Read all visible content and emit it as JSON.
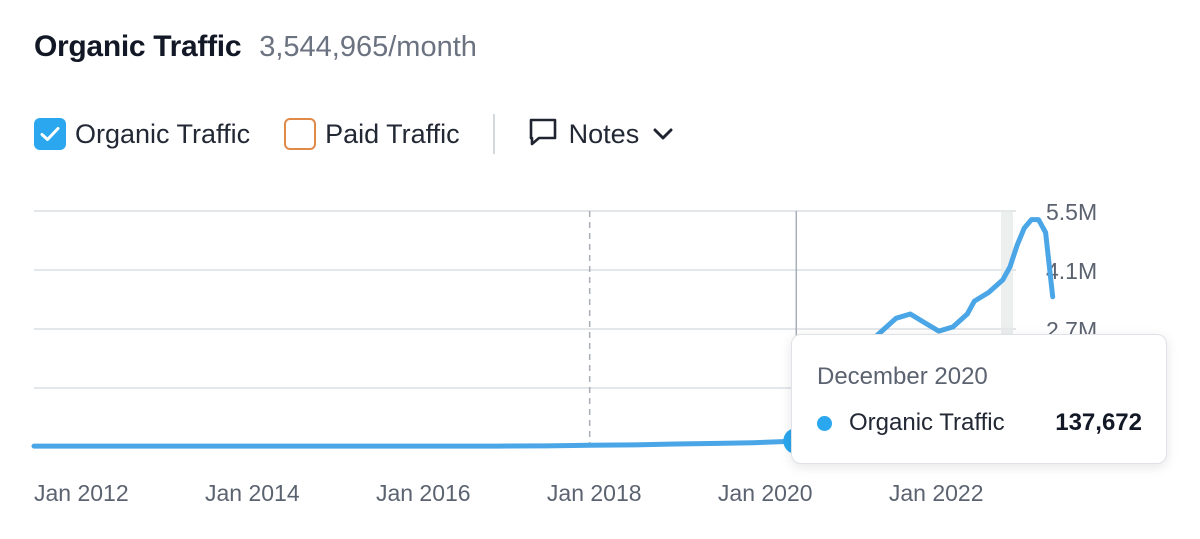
{
  "header": {
    "title": "Organic Traffic",
    "value": "3,544,965/month"
  },
  "legend": {
    "organic": {
      "label": "Organic Traffic",
      "checked": true,
      "color": "#2aa7ee"
    },
    "paid": {
      "label": "Paid Traffic",
      "checked": false,
      "color": "#e08a4a"
    },
    "notes": {
      "label": "Notes",
      "icon": "comment-icon",
      "dropdown_icon": "chevron-down-icon"
    }
  },
  "tooltip": {
    "date": "December 2020",
    "series_name": "Organic Traffic",
    "value": "137,672"
  },
  "chart_data": {
    "type": "line",
    "x_tick_labels": [
      "Jan 2012",
      "Jan 2014",
      "Jan 2016",
      "Jan 2018",
      "Jan 2020",
      "Jan 2022"
    ],
    "y_tick_labels": [
      "5.5M",
      "4.1M",
      "2.7M"
    ],
    "ylim": [
      0,
      5500000
    ],
    "xlim": [
      "2012-01",
      "2023-06"
    ],
    "grid": true,
    "highlight": {
      "date": "2020-12",
      "value": 137672
    },
    "series": [
      {
        "color": "#4aa6e6",
        "points": [
          [
            "2012-01",
            20000
          ],
          [
            "2014-01",
            20000
          ],
          [
            "2016-01",
            20000
          ],
          [
            "2017-06",
            20000
          ],
          [
            "2018-01",
            25000
          ],
          [
            "2018-07",
            40000
          ],
          [
            "2019-01",
            50000
          ],
          [
            "2019-07",
            70000
          ],
          [
            "2020-01",
            85000
          ],
          [
            "2020-06",
            100000
          ],
          [
            "2020-12",
            137672
          ],
          [
            "2021-06",
            800000
          ],
          [
            "2021-10",
            2400000
          ],
          [
            "2021-12",
            2700000
          ],
          [
            "2022-02",
            3000000
          ],
          [
            "2022-04",
            3100000
          ],
          [
            "2022-06",
            2900000
          ],
          [
            "2022-08",
            2700000
          ],
          [
            "2022-10",
            2800000
          ],
          [
            "2022-12",
            3100000
          ],
          [
            "2023-01",
            3400000
          ],
          [
            "2023-03",
            3600000
          ],
          [
            "2023-05",
            3900000
          ],
          [
            "2023-06",
            4200000
          ],
          [
            "2023-07",
            4700000
          ],
          [
            "2023-08",
            5100000
          ],
          [
            "2023-09",
            5300000
          ],
          [
            "2023-10",
            5300000
          ],
          [
            "2023-11",
            5000000
          ],
          [
            "2023-12",
            3500000
          ]
        ]
      }
    ],
    "vertical_markers": [
      "2018-07",
      "2020-12"
    ]
  }
}
